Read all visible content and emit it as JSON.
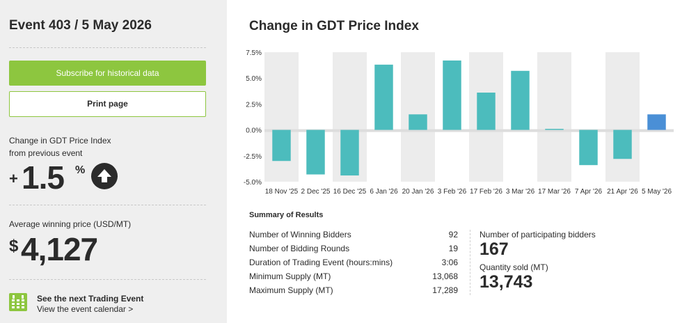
{
  "sidebar": {
    "event_title": "Event 403 / 5 May 2026",
    "subscribe_label": "Subscribe for historical data",
    "print_label": "Print page",
    "change_label_line1": "Change in GDT Price Index",
    "change_label_line2": "from previous event",
    "change_sign": "+",
    "change_value": "1.5",
    "change_unit": "%",
    "avg_price_label": "Average winning price (USD/MT)",
    "avg_price_currency": "$",
    "avg_price_value": "4,127",
    "next_event_title": "See the next Trading Event",
    "next_event_link": "View the event calendar >",
    "icons": {
      "trend": "arrow-up-circle-icon",
      "calendar": "calendar-icon"
    }
  },
  "main": {
    "chart_title": "Change in GDT Price Index",
    "summary": {
      "heading": "Summary of Results",
      "rows": [
        {
          "label": "Number of Winning Bidders",
          "value": "92"
        },
        {
          "label": "Number of Bidding Rounds",
          "value": "19"
        },
        {
          "label": "Duration of Trading Event (hours:mins)",
          "value": "3:06"
        },
        {
          "label": "Minimum Supply (MT)",
          "value": "13,068"
        },
        {
          "label": "Maximum Supply (MT)",
          "value": "17,289"
        }
      ],
      "participating_label": "Number of participating bidders",
      "participating_value": "167",
      "quantity_label": "Quantity sold (MT)",
      "quantity_value": "13,743"
    }
  },
  "colors": {
    "accent_green": "#8dc63f",
    "bar_teal": "#4cbcbd",
    "bar_current": "#4a8fd6",
    "text_dark": "#2b2b2b"
  },
  "chart_data": {
    "type": "bar",
    "categories": [
      "18 Nov '25",
      "2 Dec '25",
      "16 Dec '25",
      "6 Jan '26",
      "20 Jan '26",
      "3 Feb '26",
      "17 Feb '26",
      "3 Mar '26",
      "17 Mar '26",
      "7 Apr '26",
      "21 Apr '26",
      "5 May '26"
    ],
    "values": [
      -3.0,
      -4.3,
      -4.4,
      6.3,
      1.5,
      6.7,
      3.6,
      5.7,
      0.1,
      -3.4,
      -2.8,
      1.5
    ],
    "ylim": [
      -5.0,
      7.5
    ],
    "yticks": [
      "7.5%",
      "5.0%",
      "2.5%",
      "0.0%",
      "-2.5%",
      "-5.0%"
    ],
    "ytick_values": [
      7.5,
      5.0,
      2.5,
      0.0,
      -2.5,
      -5.0
    ],
    "highlight_index": 11,
    "grid": "alternating column bands"
  }
}
